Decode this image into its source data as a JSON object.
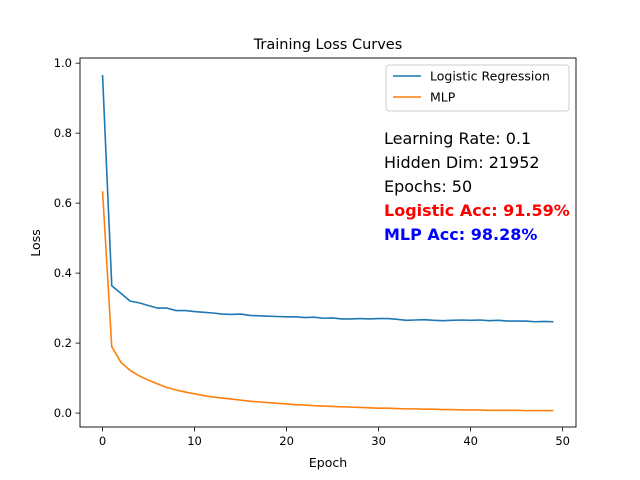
{
  "chart_data": {
    "type": "line",
    "title": "Training Loss Curves",
    "xlabel": "Epoch",
    "ylabel": "Loss",
    "xlim": [
      -2.45,
      51.45
    ],
    "ylim": [
      -0.0398,
      1.0148
    ],
    "xticks": [
      0,
      10,
      20,
      30,
      40,
      50
    ],
    "yticks": [
      0.0,
      0.2,
      0.4,
      0.6,
      0.8,
      1.0
    ],
    "xtick_labels": [
      "0",
      "10",
      "20",
      "30",
      "40",
      "50"
    ],
    "ytick_labels": [
      "0.0",
      "0.2",
      "0.4",
      "0.6",
      "0.8",
      "1.0"
    ],
    "grid": false,
    "legend_position": "top-right",
    "x": [
      0,
      1,
      2,
      3,
      4,
      5,
      6,
      7,
      8,
      9,
      10,
      11,
      12,
      13,
      14,
      15,
      16,
      17,
      18,
      19,
      20,
      21,
      22,
      23,
      24,
      25,
      26,
      27,
      28,
      29,
      30,
      31,
      32,
      33,
      34,
      35,
      36,
      37,
      38,
      39,
      40,
      41,
      42,
      43,
      44,
      45,
      46,
      47,
      48,
      49
    ],
    "series": [
      {
        "name": "Logistic Regression",
        "color": "#1f77b4",
        "values": [
          0.966,
          0.364,
          0.342,
          0.32,
          0.315,
          0.307,
          0.3,
          0.3,
          0.293,
          0.293,
          0.29,
          0.288,
          0.286,
          0.283,
          0.282,
          0.283,
          0.279,
          0.278,
          0.277,
          0.276,
          0.275,
          0.275,
          0.273,
          0.274,
          0.271,
          0.272,
          0.269,
          0.269,
          0.27,
          0.269,
          0.27,
          0.27,
          0.268,
          0.265,
          0.266,
          0.267,
          0.265,
          0.264,
          0.265,
          0.266,
          0.265,
          0.266,
          0.264,
          0.265,
          0.263,
          0.263,
          0.263,
          0.261,
          0.262,
          0.261
        ]
      },
      {
        "name": "MLP",
        "color": "#ff7f0e",
        "values": [
          0.634,
          0.19,
          0.145,
          0.122,
          0.106,
          0.094,
          0.083,
          0.073,
          0.066,
          0.06,
          0.055,
          0.05,
          0.046,
          0.043,
          0.04,
          0.037,
          0.034,
          0.032,
          0.03,
          0.028,
          0.026,
          0.024,
          0.023,
          0.021,
          0.02,
          0.019,
          0.018,
          0.017,
          0.016,
          0.015,
          0.014,
          0.014,
          0.013,
          0.012,
          0.012,
          0.011,
          0.011,
          0.01,
          0.01,
          0.009,
          0.009,
          0.009,
          0.008,
          0.008,
          0.008,
          0.008,
          0.007,
          0.007,
          0.007,
          0.007
        ]
      }
    ],
    "annotations": [
      {
        "text": "Learning Rate: 0.1",
        "color": "#000000",
        "bold": false
      },
      {
        "text": "Hidden Dim: 21952",
        "color": "#000000",
        "bold": false
      },
      {
        "text": "Epochs: 50",
        "color": "#000000",
        "bold": false
      },
      {
        "text": "Logistic Acc: 91.59%",
        "color": "#ff0000",
        "bold": true
      },
      {
        "text": "MLP Acc: 98.28%",
        "color": "#0000ff",
        "bold": true
      }
    ]
  }
}
